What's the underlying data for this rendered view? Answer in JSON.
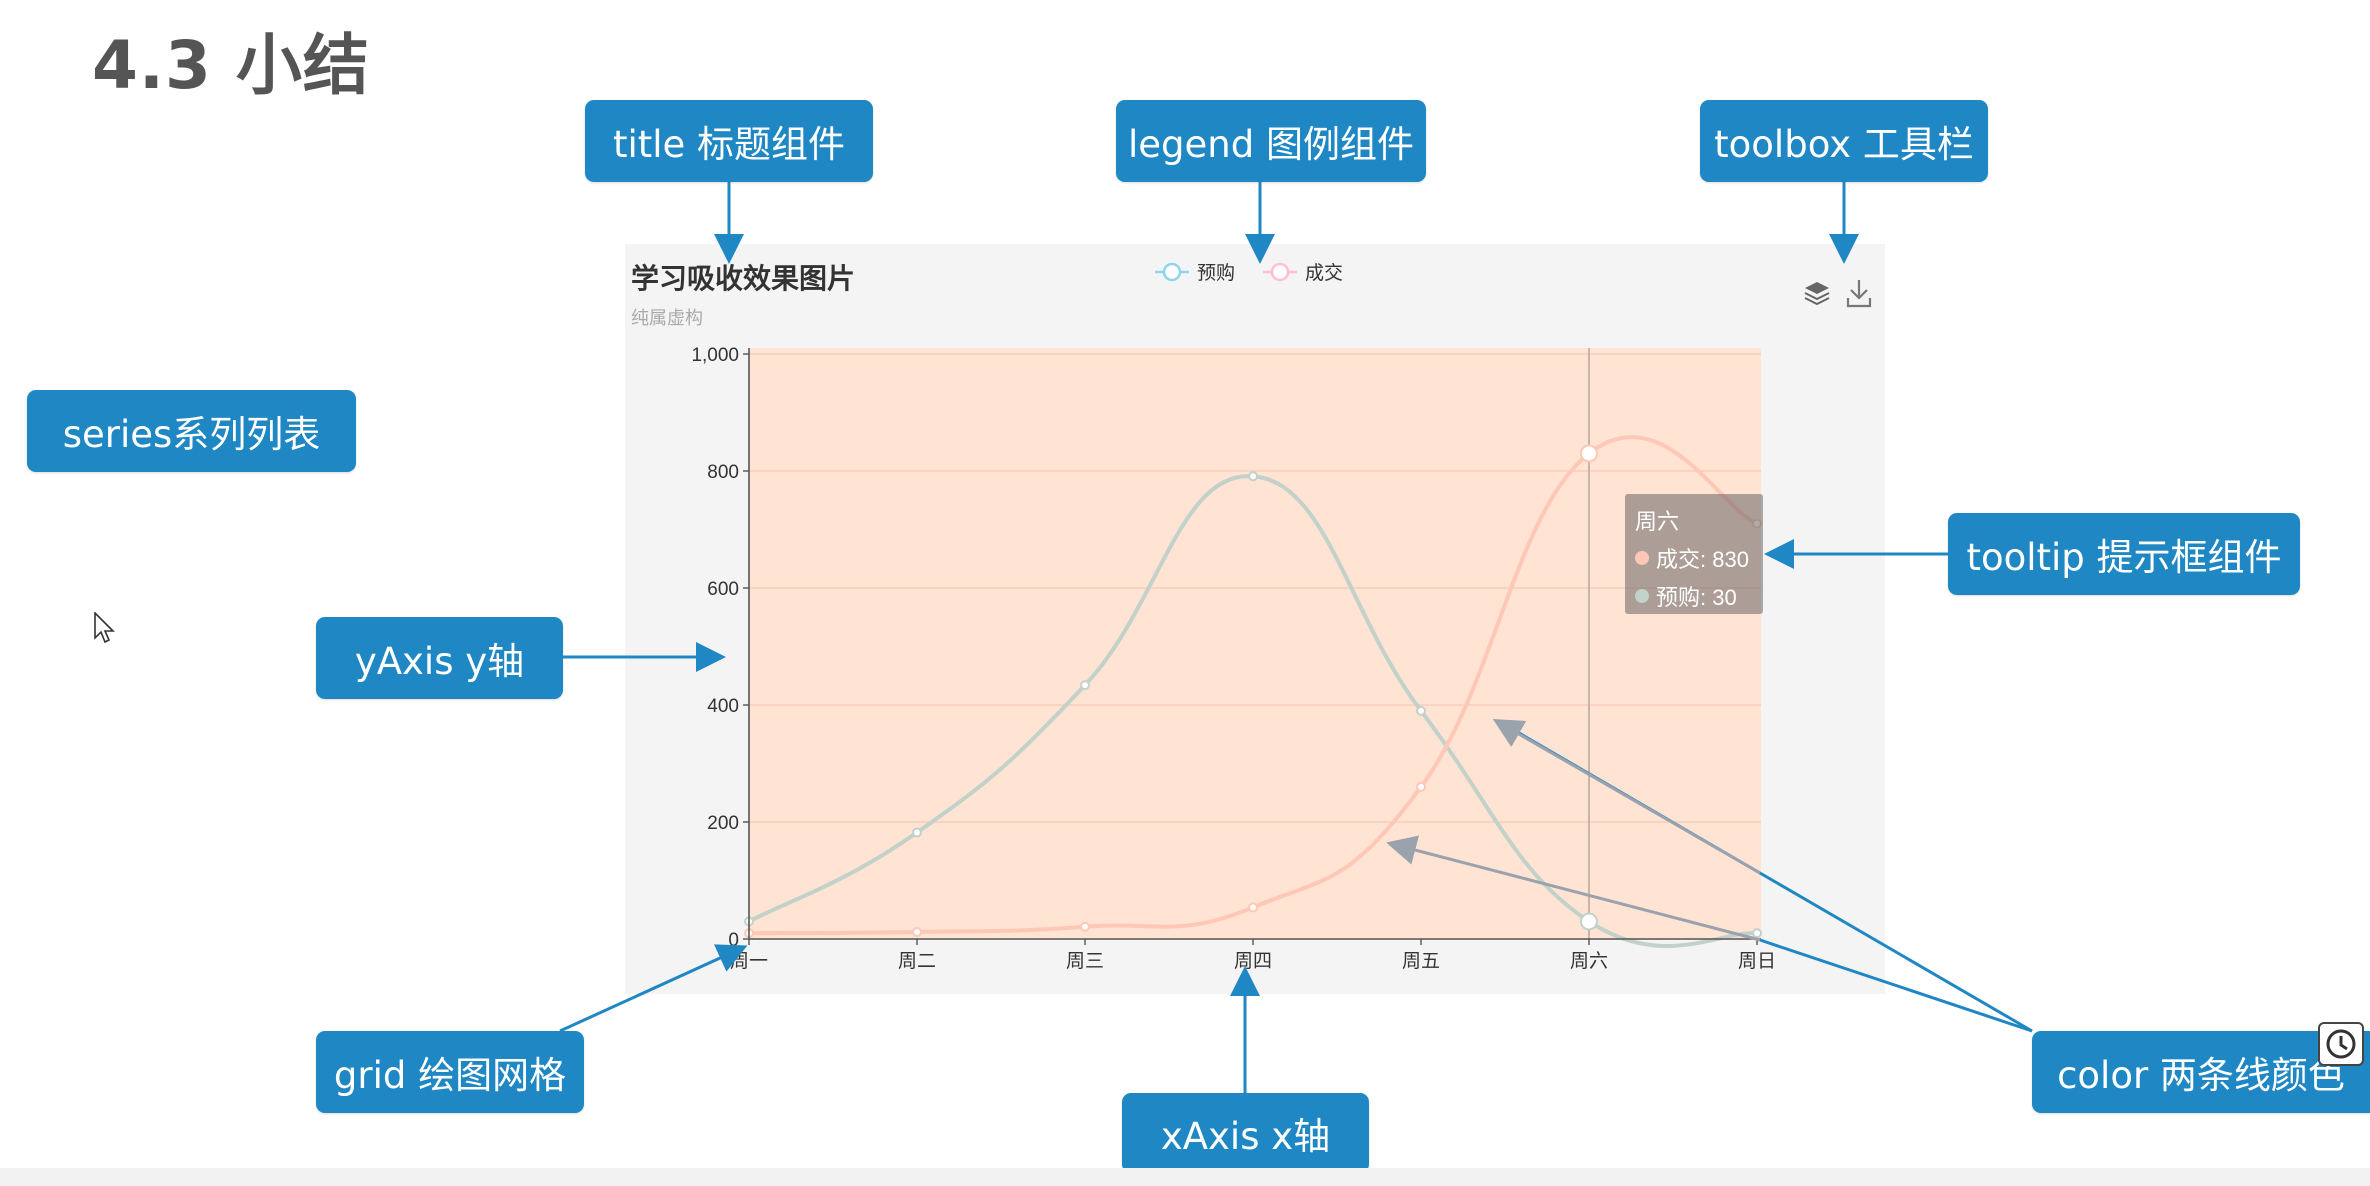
{
  "slide": {
    "title": "4.3 小结"
  },
  "callouts": {
    "title": "title 标题组件",
    "legend": "legend 图例组件",
    "toolbox": "toolbox 工具栏",
    "series": "series系列列表",
    "yaxis": "yAxis y轴",
    "tooltip": "tooltip 提示框组件",
    "grid": "grid 绘图网格",
    "xaxis": "xAxis x轴",
    "color": "color 两条线颜色"
  },
  "chart_data": {
    "type": "line",
    "title": "学习吸收效果图片",
    "subtitle": "纯属虚构",
    "categories": [
      "周一",
      "周二",
      "周三",
      "周四",
      "周五",
      "周六",
      "周日"
    ],
    "series": [
      {
        "name": "预购",
        "values": [
          30,
          182,
          434,
          791,
          390,
          30,
          10
        ],
        "color": "#c2d1ca"
      },
      {
        "name": "成交",
        "values": [
          10,
          12,
          21,
          54,
          260,
          830,
          710
        ],
        "color": "#ffc7b5"
      }
    ],
    "ylim": [
      0,
      1000
    ],
    "yticks": [
      0,
      200,
      400,
      600,
      800,
      1000
    ],
    "ytick_labels": [
      "0",
      "200",
      "400",
      "600",
      "800",
      "1,000"
    ],
    "grid": true,
    "smooth": true,
    "area_fill_color": "#ffe3d3",
    "legend_position": "top-center",
    "toolbox": [
      "layers-icon",
      "download-icon"
    ]
  },
  "tooltip": {
    "title": "周六",
    "rows": [
      {
        "label": "成交: 830",
        "color": "#ffc7b5"
      },
      {
        "label": "预购: 30",
        "color": "#c2d1ca"
      }
    ]
  },
  "colors": {
    "callout_bg": "#1f87c3",
    "arrow": "#1f87c3",
    "arrow_gray": "#a0a7b0"
  }
}
